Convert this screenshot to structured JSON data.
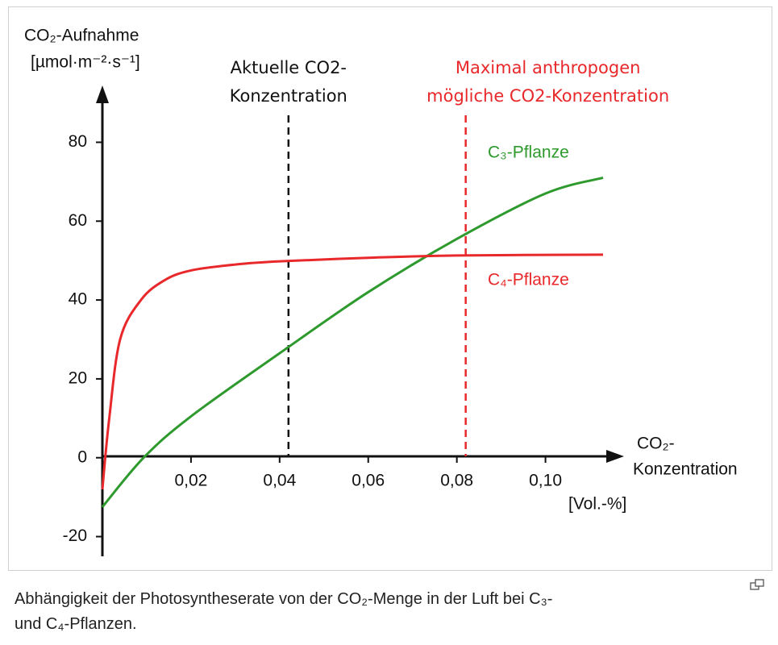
{
  "chart_data": {
    "type": "line",
    "y_label": [
      "CO₂-Aufnahme",
      "[µmol·m⁻²·s⁻¹]"
    ],
    "x_label": [
      "CO₂-",
      "Konzentration",
      "[Vol.-%]"
    ],
    "xlim": [
      0,
      0.117
    ],
    "ylim": [
      -25,
      94
    ],
    "xticks": [
      {
        "value": 0.02,
        "label": "0,02"
      },
      {
        "value": 0.04,
        "label": "0,04"
      },
      {
        "value": 0.06,
        "label": "0,06"
      },
      {
        "value": 0.08,
        "label": "0,08"
      },
      {
        "value": 0.1,
        "label": "0,10"
      }
    ],
    "yticks": [
      -20,
      0,
      20,
      40,
      60,
      80
    ],
    "series": [
      {
        "name": "C₃-Pflanze",
        "color": "#2e9a2e",
        "x": [
          0,
          0.0093,
          0.02,
          0.04,
          0.06,
          0.08,
          0.1,
          0.113
        ],
        "values": [
          -12.5,
          0,
          10.5,
          26.5,
          42,
          55.5,
          67,
          71
        ]
      },
      {
        "name": "C₄-Pflanze",
        "color": "#e8282a",
        "x": [
          0,
          0.0015,
          0.004,
          0.0087,
          0.014,
          0.02,
          0.03,
          0.04,
          0.06,
          0.08,
          0.113
        ],
        "values": [
          -8,
          9.5,
          30,
          40,
          45,
          47.5,
          49,
          49.8,
          50.7,
          51.3,
          51.5
        ]
      }
    ],
    "vlines": [
      {
        "x": 0.042,
        "color": "#111111",
        "label": [
          "Aktuelle CO2-",
          "Konzentration"
        ]
      },
      {
        "x": 0.082,
        "color": "#e8282a",
        "label": [
          "Maximal anthropogen",
          "mögliche CO2-Konzentration"
        ]
      }
    ],
    "caption": "Abhängigkeit der Photosyntheserate von der CO₂-Menge in der Luft bei C₃- und C₄-Pflanzen."
  }
}
